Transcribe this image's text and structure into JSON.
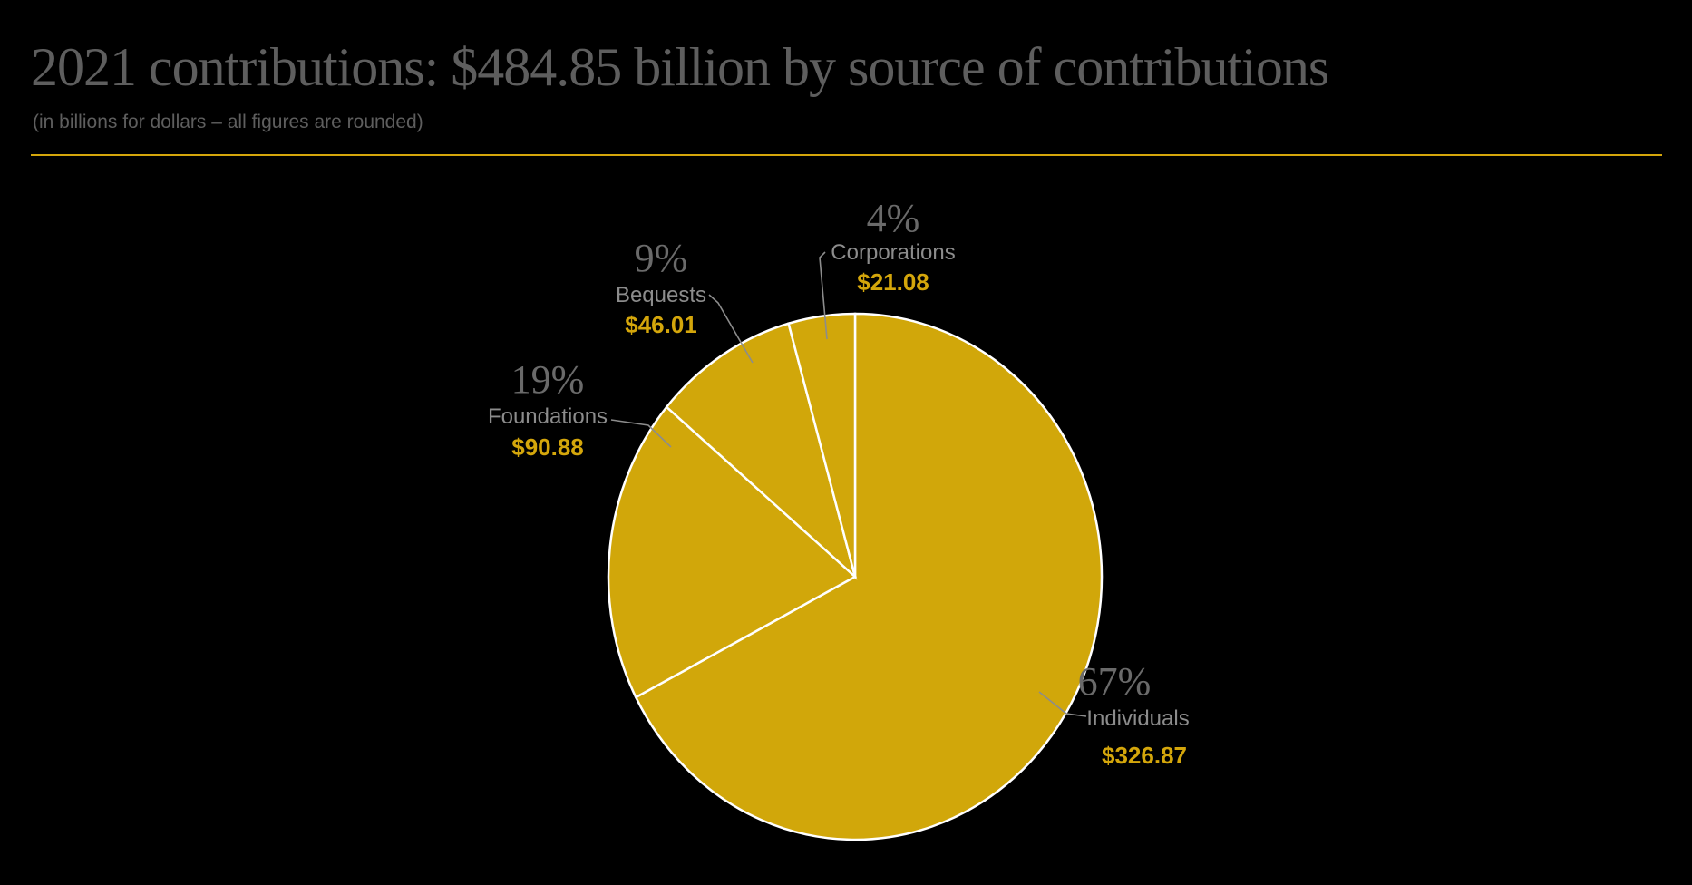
{
  "title": "2021 contributions: $484.85 billion by source of contributions",
  "subtitle": "(in billions for dollars – all figures are rounded)",
  "colors": {
    "accent": "#d4a60b",
    "slice_fill": "#d1a70a",
    "slice_stroke": "#ffffff",
    "text_gray": "#5e5e5e",
    "background": "#000000"
  },
  "chart_data": {
    "type": "pie",
    "title": "2021 contributions: $484.85 billion by source of contributions",
    "subtitle": "(in billions for dollars – all figures are rounded)",
    "total": 484.85,
    "unit": "billions of dollars",
    "start": "12 o'clock, clockwise",
    "slices": [
      {
        "name": "Individuals",
        "value": 326.87,
        "percent_label": "67%",
        "value_label": "$326.87"
      },
      {
        "name": "Foundations",
        "value": 90.88,
        "percent_label": "19%",
        "value_label": "$90.88"
      },
      {
        "name": "Bequests",
        "value": 46.01,
        "percent_label": "9%",
        "value_label": "$46.01"
      },
      {
        "name": "Corporations",
        "value": 21.08,
        "percent_label": "4%",
        "value_label": "$21.08"
      }
    ]
  }
}
